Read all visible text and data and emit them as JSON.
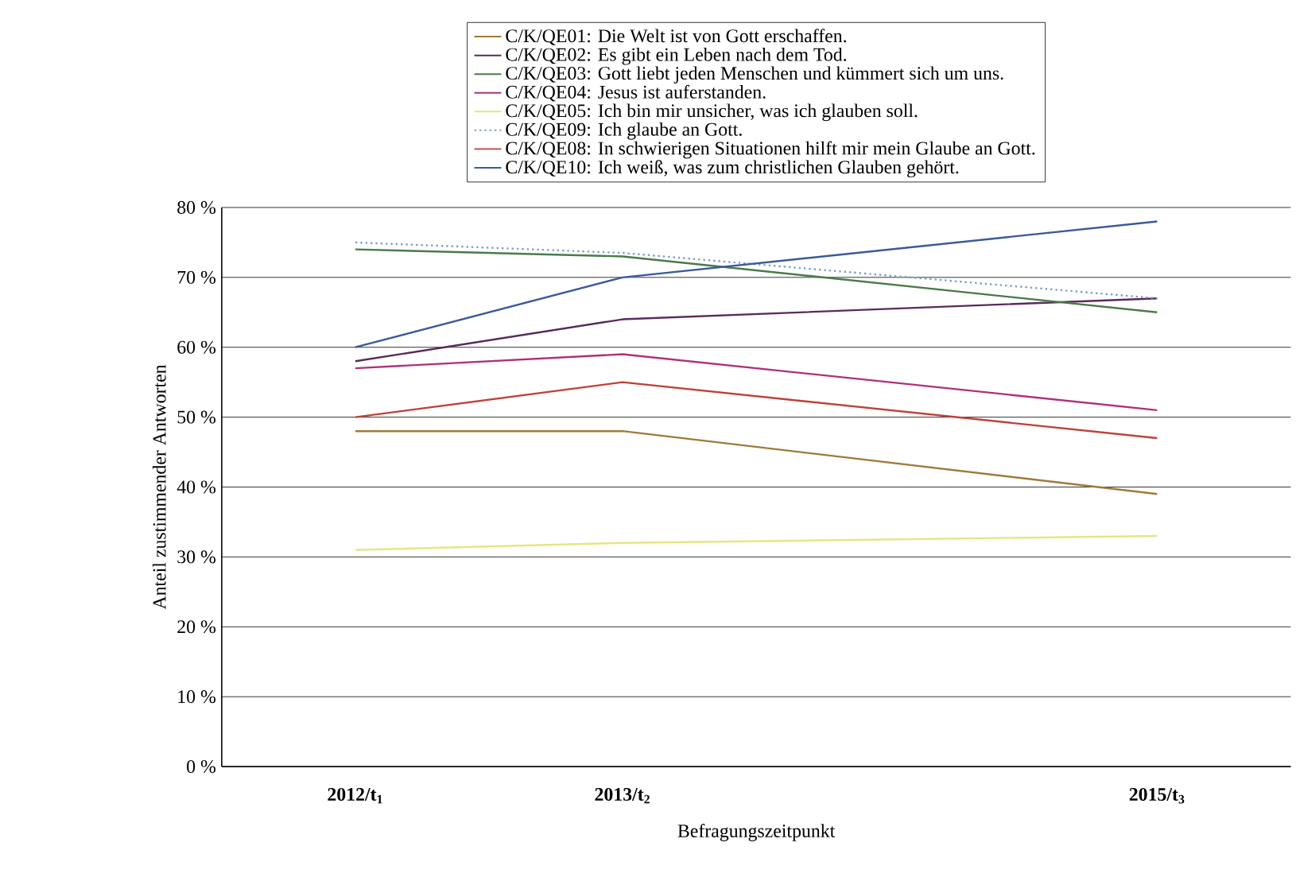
{
  "chart_data": {
    "type": "line",
    "xlabel": "Befragungszeitpunkt",
    "ylabel": "Anteil zustimmender Antworten",
    "categories": [
      "2012/t$_{1}$",
      "2013/t$_{2}$",
      null,
      "2015/t$_{3}$"
    ],
    "ylim": [
      0,
      80
    ],
    "yticks": [
      {
        "value": 0,
        "label": "0 %"
      },
      {
        "value": 10,
        "label": "10 %"
      },
      {
        "value": 20,
        "label": "20 %"
      },
      {
        "value": 30,
        "label": "30 %"
      },
      {
        "value": 40,
        "label": "40 %"
      },
      {
        "value": 50,
        "label": "50 %"
      },
      {
        "value": 60,
        "label": "60 %"
      },
      {
        "value": 70,
        "label": "70 %"
      },
      {
        "value": 80,
        "label": "80 %"
      }
    ],
    "grid": "y",
    "legend": "top",
    "marker": "none",
    "series": [
      {
        "name": "C/K/QE01: Die Welt ist von Gott erschaffen.",
        "color": "#a07a3a",
        "values": [
          48,
          48,
          null,
          39
        ]
      },
      {
        "name": "C/K/QE02: Es gibt ein Leben nach dem Tod.",
        "color": "#5a2a5a",
        "values": [
          58,
          64,
          null,
          67
        ]
      },
      {
        "name": "C/K/QE03: Gott liebt jeden Menschen und kümmert sich um uns.",
        "color": "#4a7a4a",
        "values": [
          74,
          73,
          null,
          65
        ]
      },
      {
        "name": "C/K/QE04: Jesus ist auferstanden.",
        "color": "#b0307a",
        "values": [
          57,
          59,
          null,
          51
        ]
      },
      {
        "name": "C/K/QE05: Ich bin mir unsicher, was ich glauben soll.",
        "color": "#e6e680",
        "values": [
          31,
          32,
          null,
          33
        ]
      },
      {
        "name": "C/K/QE09: Ich glaube an Gott.",
        "color": "#7aa0c0",
        "line_style": "dotted",
        "values": [
          75,
          73.5,
          null,
          67
        ]
      },
      {
        "name": "C/K/QE08: In schwierigen Situationen hilft mir mein Glaube an Gott.",
        "color": "#c0403a",
        "values": [
          50,
          55,
          null,
          47
        ]
      },
      {
        "name": "C/K/QE10: Ich weiß, was zum christlichen Glauben gehört.",
        "color": "#3a5a9a",
        "values": [
          60,
          70,
          null,
          78
        ]
      }
    ]
  }
}
